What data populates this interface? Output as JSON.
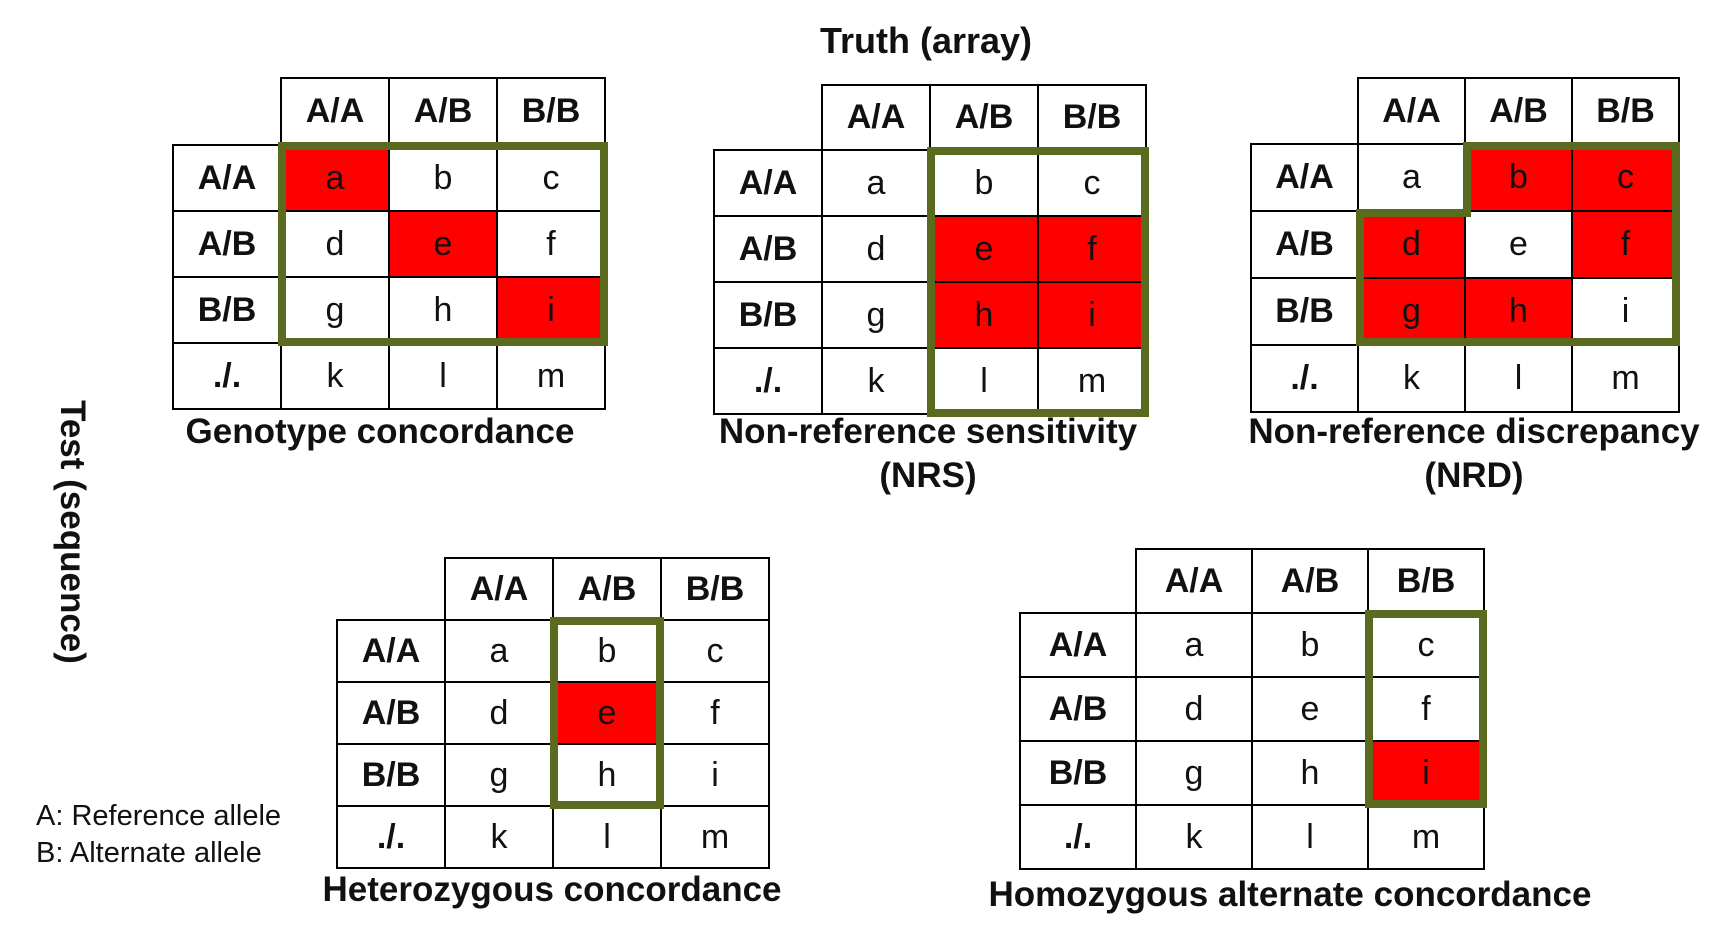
{
  "header": {
    "truth_label": "Truth (array)",
    "test_label": "Test (sequence)"
  },
  "legend": {
    "a_line": "A: Reference allele",
    "b_line": "B: Alternate allele"
  },
  "colors": {
    "highlight": "#ff0000",
    "outline": "#5a6a1e"
  },
  "col_headers": [
    "A/A",
    "A/B",
    "B/B"
  ],
  "row_headers": [
    "A/A",
    "A/B",
    "B/B",
    "./."
  ],
  "grid": [
    [
      "a",
      "b",
      "c"
    ],
    [
      "d",
      "e",
      "f"
    ],
    [
      "g",
      "h",
      "i"
    ],
    [
      "k",
      "l",
      "m"
    ]
  ],
  "panels": [
    {
      "id": "genotype-concordance",
      "caption_lines": [
        "Genotype concordance"
      ],
      "highlighted": [
        "a",
        "e",
        "i"
      ]
    },
    {
      "id": "non-reference-sensitivity",
      "caption_lines": [
        "Non-reference sensitivity",
        "(NRS)"
      ],
      "highlighted": [
        "e",
        "f",
        "h",
        "i"
      ]
    },
    {
      "id": "non-reference-discrepancy",
      "caption_lines": [
        "Non-reference discrepancy",
        "(NRD)"
      ],
      "highlighted": [
        "b",
        "c",
        "d",
        "f",
        "g",
        "h"
      ]
    },
    {
      "id": "heterozygous-concordance",
      "caption_lines": [
        "Heterozygous concordance"
      ],
      "highlighted": [
        "e"
      ]
    },
    {
      "id": "homozygous-alternate-concordance",
      "caption_lines": [
        "Homozygous alternate concordance"
      ],
      "highlighted": [
        "i"
      ]
    }
  ]
}
